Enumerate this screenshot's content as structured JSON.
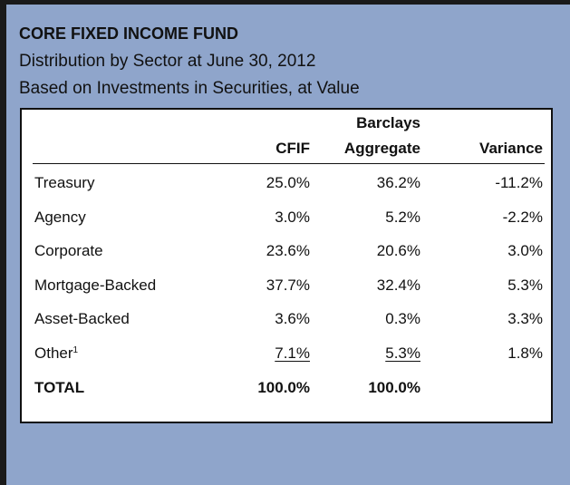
{
  "header": {
    "title": "CORE FIXED INCOME FUND",
    "subtitle": "Distribution by Sector at June 30, 2012",
    "note": "Based on  Investments in Securities, at Value"
  },
  "table": {
    "columns": [
      "CFIF",
      [
        "Barclays",
        "Aggregate"
      ],
      "Variance"
    ],
    "rows": [
      [
        "Treasury",
        "25.0%",
        "36.2%",
        "-11.2%"
      ],
      [
        "Agency",
        "3.0%",
        "5.2%",
        "-2.2%"
      ],
      [
        "Corporate",
        "23.6%",
        "20.6%",
        "3.0%"
      ],
      [
        "Mortgage-Backed",
        "37.7%",
        "32.4%",
        "5.3%"
      ],
      [
        "Asset-Backed",
        "3.6%",
        "0.3%",
        "3.3%"
      ],
      [
        "Other",
        "7.1%",
        "5.3%",
        "1.8%"
      ]
    ],
    "footnote_marker": "1",
    "total": [
      "TOTAL",
      "100.0%",
      "100.0%"
    ]
  }
}
